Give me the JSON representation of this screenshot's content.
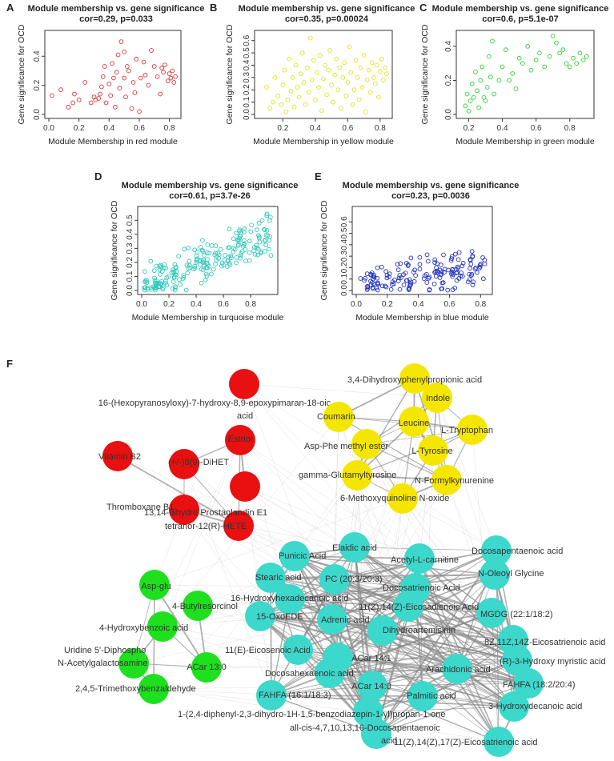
{
  "chart_data": [
    {
      "panel": "A",
      "type": "scatter",
      "title": "Module membership vs. gene significance",
      "subtitle": "cor=0.29, p=0.033",
      "xlabel": "Module Membership in red module",
      "ylabel": "Gene significance for OCD",
      "color": "#e03030",
      "xlim": [
        0.0,
        0.85
      ],
      "ylim": [
        0.0,
        0.55
      ],
      "xticks": [
        "0.0",
        "0.2",
        "0.4",
        "0.6",
        "0.8"
      ],
      "xtick_values": [
        0,
        0.2,
        0.4,
        0.6,
        0.8
      ],
      "yticks": [
        "0.0",
        "0.2",
        "0.4"
      ],
      "ytick_values": [
        0,
        0.2,
        0.4
      ],
      "points": [
        [
          0.02,
          0.13
        ],
        [
          0.08,
          0.17
        ],
        [
          0.13,
          0.05
        ],
        [
          0.16,
          0.08
        ],
        [
          0.17,
          0.14
        ],
        [
          0.2,
          0.1
        ],
        [
          0.24,
          0.22
        ],
        [
          0.28,
          0.08
        ],
        [
          0.3,
          0.12
        ],
        [
          0.31,
          0.1
        ],
        [
          0.33,
          0.11
        ],
        [
          0.34,
          0.14
        ],
        [
          0.35,
          0.19
        ],
        [
          0.36,
          0.26
        ],
        [
          0.37,
          0.33
        ],
        [
          0.38,
          0.08
        ],
        [
          0.4,
          0.21
        ],
        [
          0.41,
          0.13
        ],
        [
          0.42,
          0.35
        ],
        [
          0.43,
          0.25
        ],
        [
          0.44,
          0.05
        ],
        [
          0.45,
          0.29
        ],
        [
          0.46,
          0.41
        ],
        [
          0.47,
          0.18
        ],
        [
          0.48,
          0.5
        ],
        [
          0.5,
          0.43
        ],
        [
          0.5,
          0.25
        ],
        [
          0.51,
          0.12
        ],
        [
          0.52,
          0.33
        ],
        [
          0.53,
          0.3
        ],
        [
          0.55,
          0.04
        ],
        [
          0.56,
          0.22
        ],
        [
          0.57,
          0.15
        ],
        [
          0.58,
          0.38
        ],
        [
          0.6,
          0.02
        ],
        [
          0.61,
          0.25
        ],
        [
          0.63,
          0.36
        ],
        [
          0.64,
          0.27
        ],
        [
          0.66,
          0.2
        ],
        [
          0.68,
          0.44
        ],
        [
          0.7,
          0.33
        ],
        [
          0.72,
          0.26
        ],
        [
          0.74,
          0.14
        ],
        [
          0.75,
          0.32
        ],
        [
          0.76,
          0.29
        ],
        [
          0.77,
          0.34
        ],
        [
          0.79,
          0.23
        ],
        [
          0.8,
          0.28
        ],
        [
          0.81,
          0.25
        ],
        [
          0.82,
          0.3
        ],
        [
          0.83,
          0.22
        ],
        [
          0.84,
          0.26
        ]
      ]
    },
    {
      "panel": "B",
      "type": "scatter",
      "title": "Module membership vs. gene significance",
      "subtitle": "cor=0.35, p=0.00024",
      "xlabel": "Module Membership in yellow module",
      "ylabel": "Gene significance for OCD",
      "color": "#e8e020",
      "xlim": [
        0.05,
        0.85
      ],
      "ylim": [
        0.0,
        0.65
      ],
      "xticks": [
        "0.2",
        "0.4",
        "0.6",
        "0.8"
      ],
      "xtick_values": [
        0.2,
        0.4,
        0.6,
        0.8
      ],
      "yticks": [
        "0.0",
        "0.1",
        "0.2",
        "0.3",
        "0.4",
        "0.5",
        "0.6"
      ],
      "ytick_values": [
        0,
        0.1,
        0.2,
        0.3,
        0.4,
        0.5,
        0.6
      ],
      "points": [
        [
          0.1,
          0.22
        ],
        [
          0.12,
          0.05
        ],
        [
          0.14,
          0.1
        ],
        [
          0.15,
          0.3
        ],
        [
          0.17,
          0.15
        ],
        [
          0.19,
          0.08
        ],
        [
          0.2,
          0.24
        ],
        [
          0.21,
          0.36
        ],
        [
          0.22,
          0.02
        ],
        [
          0.23,
          0.12
        ],
        [
          0.24,
          0.45
        ],
        [
          0.25,
          0.19
        ],
        [
          0.26,
          0.3
        ],
        [
          0.27,
          0.06
        ],
        [
          0.28,
          0.4
        ],
        [
          0.29,
          0.22
        ],
        [
          0.3,
          0.14
        ],
        [
          0.31,
          0.33
        ],
        [
          0.32,
          0.5
        ],
        [
          0.33,
          0.26
        ],
        [
          0.34,
          0.08
        ],
        [
          0.35,
          0.38
        ],
        [
          0.36,
          0.18
        ],
        [
          0.37,
          0.62
        ],
        [
          0.38,
          0.28
        ],
        [
          0.39,
          0.44
        ],
        [
          0.4,
          0.12
        ],
        [
          0.41,
          0.34
        ],
        [
          0.42,
          0.22
        ],
        [
          0.43,
          0.48
        ],
        [
          0.44,
          0.03
        ],
        [
          0.45,
          0.29
        ],
        [
          0.46,
          0.4
        ],
        [
          0.47,
          0.16
        ],
        [
          0.48,
          0.36
        ],
        [
          0.49,
          0.52
        ],
        [
          0.5,
          0.24
        ],
        [
          0.51,
          0.1
        ],
        [
          0.52,
          0.32
        ],
        [
          0.53,
          0.45
        ],
        [
          0.54,
          0.2
        ],
        [
          0.55,
          0.38
        ],
        [
          0.56,
          0.05
        ],
        [
          0.57,
          0.3
        ],
        [
          0.58,
          0.42
        ],
        [
          0.59,
          0.15
        ],
        [
          0.6,
          0.26
        ],
        [
          0.61,
          0.55
        ],
        [
          0.62,
          0.34
        ],
        [
          0.63,
          0.08
        ],
        [
          0.64,
          0.2
        ],
        [
          0.65,
          0.44
        ],
        [
          0.66,
          0.3
        ],
        [
          0.67,
          0.12
        ],
        [
          0.68,
          0.38
        ],
        [
          0.69,
          0.22
        ],
        [
          0.7,
          0.48
        ],
        [
          0.71,
          0.02
        ],
        [
          0.72,
          0.28
        ],
        [
          0.73,
          0.36
        ],
        [
          0.74,
          0.18
        ],
        [
          0.75,
          0.42
        ],
        [
          0.76,
          0.3
        ],
        [
          0.77,
          0.25
        ],
        [
          0.78,
          0.4
        ],
        [
          0.79,
          0.14
        ],
        [
          0.8,
          0.35
        ],
        [
          0.81,
          0.45
        ],
        [
          0.82,
          0.28
        ],
        [
          0.83,
          0.38
        ],
        [
          0.84,
          0.33
        ]
      ]
    },
    {
      "panel": "C",
      "type": "scatter",
      "title": "Module membership vs. gene significance",
      "subtitle": "cor=0.6, p=5.1e-07",
      "xlabel": "Module Membership in green module",
      "ylabel": "Gene significance for OCD",
      "color": "#30d030",
      "xlim": [
        0.15,
        0.92
      ],
      "ylim": [
        0.0,
        0.47
      ],
      "xticks": [
        "0.2",
        "0.4",
        "0.6",
        "0.8"
      ],
      "xtick_values": [
        0.2,
        0.4,
        0.6,
        0.8
      ],
      "yticks": [
        "0.0",
        "0.2",
        "0.4"
      ],
      "ytick_values": [
        0,
        0.2,
        0.4
      ],
      "points": [
        [
          0.18,
          0.05
        ],
        [
          0.19,
          0.12
        ],
        [
          0.2,
          0.02
        ],
        [
          0.21,
          0.08
        ],
        [
          0.22,
          0.18
        ],
        [
          0.23,
          0.1
        ],
        [
          0.24,
          0.25
        ],
        [
          0.25,
          0.14
        ],
        [
          0.26,
          0.04
        ],
        [
          0.27,
          0.2
        ],
        [
          0.28,
          0.28
        ],
        [
          0.29,
          0.1
        ],
        [
          0.3,
          0.08
        ],
        [
          0.31,
          0.16
        ],
        [
          0.32,
          0.34
        ],
        [
          0.33,
          0.22
        ],
        [
          0.34,
          0.43
        ],
        [
          0.35,
          0.12
        ],
        [
          0.38,
          0.2
        ],
        [
          0.4,
          0.28
        ],
        [
          0.42,
          0.38
        ],
        [
          0.44,
          0.2
        ],
        [
          0.46,
          0.24
        ],
        [
          0.48,
          0.15
        ],
        [
          0.5,
          0.33
        ],
        [
          0.52,
          0.3
        ],
        [
          0.55,
          0.4
        ],
        [
          0.57,
          0.26
        ],
        [
          0.6,
          0.32
        ],
        [
          0.62,
          0.36
        ],
        [
          0.65,
          0.28
        ],
        [
          0.68,
          0.34
        ],
        [
          0.7,
          0.46
        ],
        [
          0.72,
          0.42
        ],
        [
          0.74,
          0.36
        ],
        [
          0.76,
          0.38
        ],
        [
          0.78,
          0.3
        ],
        [
          0.8,
          0.28
        ],
        [
          0.82,
          0.33
        ],
        [
          0.84,
          0.3
        ],
        [
          0.86,
          0.36
        ],
        [
          0.88,
          0.32
        ],
        [
          0.9,
          0.34
        ]
      ]
    },
    {
      "panel": "D",
      "type": "scatter",
      "title": "Module membership vs. gene significance",
      "subtitle": "cor=0.61, p=3.7e-26",
      "xlabel": "Module Membership in turquoise module",
      "ylabel": "Gene significance for OCD",
      "color": "#30c8b8",
      "xlim": [
        0.0,
        0.97
      ],
      "ylim": [
        0.0,
        0.57
      ],
      "xticks": [
        "0.0",
        "0.2",
        "0.4",
        "0.6",
        "0.8"
      ],
      "xtick_values": [
        0,
        0.2,
        0.4,
        0.6,
        0.8
      ],
      "yticks": [
        "0.0",
        "0.1",
        "0.2",
        "0.3",
        "0.4",
        "0.5"
      ],
      "ytick_values": [
        0,
        0.1,
        0.2,
        0.3,
        0.4,
        0.5
      ],
      "generated": {
        "n": 220,
        "seed": 7,
        "slope": 0.42,
        "intercept": 0.02,
        "noise": 0.11
      }
    },
    {
      "panel": "E",
      "type": "scatter",
      "title": "Module membership vs. gene significance",
      "subtitle": "cor=0.23, p=0.0036",
      "xlabel": "Module Membership in blue module",
      "ylabel": "Gene significance for OCD",
      "color": "#2030c0",
      "xlim": [
        0.0,
        0.85
      ],
      "ylim": [
        0.0,
        0.7
      ],
      "xticks": [
        "0.0",
        "0.2",
        "0.4",
        "0.6",
        "0.8"
      ],
      "xtick_values": [
        0,
        0.2,
        0.4,
        0.6,
        0.8
      ],
      "yticks": [
        "0.0",
        "0.1",
        "0.2",
        "0.3",
        "0.4",
        "0.5",
        "0.6"
      ],
      "ytick_values": [
        0,
        0.1,
        0.2,
        0.3,
        0.4,
        0.5,
        0.6
      ],
      "generated": {
        "n": 160,
        "seed": 13,
        "slope": 0.2,
        "intercept": 0.05,
        "noise": 0.12
      }
    }
  ],
  "network": {
    "panel": "F",
    "modules": {
      "red": {
        "color": "#e81010",
        "nodes": [
          "16-(Hexopyranosyloxy)-7-hydroxy-8,9-epoxypimaran-18-oic acid",
          "Estriol",
          "Vitamin B2",
          "(+/-)8(9)-DiHET",
          "13,14-dihydro Prostaglandin E1",
          "Thromboxane B1",
          "tetranor-12(R)-HETE"
        ]
      },
      "yellow": {
        "color": "#f5e600",
        "nodes": [
          "3,4-Dihydroxyphenylpropionic acid",
          "Indole",
          "Coumarin",
          "Leucine",
          "L-Tryptophan",
          "Asp-Phe methyl ester",
          "L-Tyrosine",
          "gamma-Glutamyltyrosine",
          "N-Formylkynurenine",
          "6-Methoxyquinoline N-oxide"
        ]
      },
      "green": {
        "color": "#1ee01e",
        "nodes": [
          "Asp-glu",
          "4-Butylresorcinol",
          "4-Hydroxybenzoic acid",
          "Uridine 5'-Diphospho N-Acetylgalactosamine",
          "ACar 13:0",
          "2,4,5-Trimethoxybenzaldehyde"
        ]
      },
      "turquoise": {
        "color": "#3cd8cc",
        "nodes": [
          "Elaidic acid",
          "Punicic Acid",
          "Acetyl-L-carnitine",
          "Docosapentaenoic acid",
          "N-Oleoyl Glycine",
          "Stearic acid",
          "PC (20:3/20:3)",
          "Docosatrienoic Acid",
          "16-Hydroxyhexadecanoic acid",
          "11(Z),14(Z)-Eicosadienoic Acid",
          "15-OxoEDE",
          "Adrenic acid",
          "MGDG (22:1/18:2)",
          "Dihydroartemisinin",
          "8Z,11Z,14Z-Eicosatrienoic acid",
          "11(E)-Eicosenoic Acid",
          "ACar 14:1",
          "(R)-3-Hydroxy myristic acid",
          "Docosahexaenoic acid",
          "Arachidonic acid",
          "FAHFA (18:2/20:4)",
          "ACar 14:0",
          "FAHFA (16:1/18:3)",
          "Palmitic acid",
          "3-Hydroxydecanoic acid",
          "1-(2,4-diphenyl-2,3-dihydro-1H-1,5-benzodiazepin-1-yl)propan-1-one",
          "all-cis-4,7,10,13,16-Docosapentaenoic acid",
          "11(Z),14(Z),17(Z)-Eicosatrienoic acid"
        ]
      }
    }
  }
}
